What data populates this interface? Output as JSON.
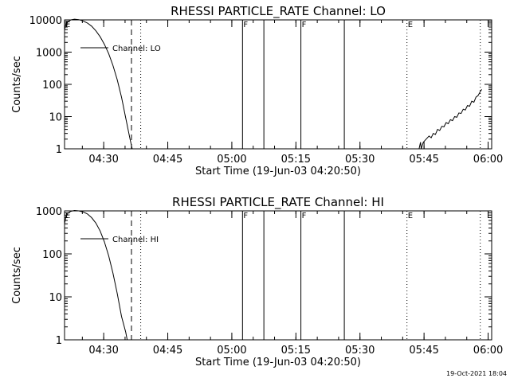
{
  "timestamp": "19-Oct-2021 18:04",
  "chart_data": [
    {
      "type": "line",
      "title": "RHESSI PARTICLE_RATE Channel: LO",
      "xlabel": "Start Time (19-Jun-03 04:20:50)",
      "ylabel": "Counts/sec",
      "y_scale": "log",
      "ylim": [
        1,
        10000
      ],
      "y_ticks": [
        1,
        10,
        100,
        1000,
        10000
      ],
      "y_tick_labels": [
        "1",
        "10",
        "100",
        "1000",
        "10000"
      ],
      "xlim": [
        "04:20:50",
        "06:00:50"
      ],
      "x_ticks": [
        "04:30",
        "04:45",
        "05:00",
        "05:15",
        "05:30",
        "05:45",
        "06:00"
      ],
      "legend": {
        "label": "Channel: LO",
        "position": "top-left"
      },
      "markers": [
        {
          "time": "04:20:50",
          "style": "dotted",
          "label": "E"
        },
        {
          "time": "04:36:30",
          "style": "dashed",
          "label": ""
        },
        {
          "time": "04:38:40",
          "style": "dotted",
          "label": ""
        },
        {
          "time": "05:02:30",
          "style": "solid",
          "label": "F"
        },
        {
          "time": "05:07:30",
          "style": "solid",
          "label": ""
        },
        {
          "time": "05:16:10",
          "style": "solid",
          "label": "F"
        },
        {
          "time": "05:26:20",
          "style": "solid",
          "label": ""
        },
        {
          "time": "05:41:00",
          "style": "dotted",
          "label": "E"
        },
        {
          "time": "05:58:10",
          "style": "dotted",
          "label": ""
        }
      ],
      "series": [
        {
          "segments": [
            [
              [
                "04:20:50",
                5000
              ],
              [
                "04:21:10",
                7500
              ],
              [
                "04:21:40",
                9000
              ],
              [
                "04:22:20",
                10000
              ],
              [
                "04:23:10",
                10500
              ],
              [
                "04:24:10",
                10200
              ],
              [
                "04:25:10",
                9300
              ],
              [
                "04:26:10",
                8000
              ],
              [
                "04:27:10",
                6400
              ],
              [
                "04:28:10",
                4600
              ],
              [
                "04:29:10",
                3000
              ],
              [
                "04:30:10",
                1750
              ],
              [
                "04:31:10",
                900
              ],
              [
                "04:32:10",
                390
              ],
              [
                "04:33:10",
                140
              ],
              [
                "04:34:10",
                40
              ],
              [
                "04:35:10",
                9
              ],
              [
                "04:36:10",
                2
              ],
              [
                "04:36:40",
                1
              ]
            ],
            [
              [
                "05:43:50",
                1
              ],
              [
                "05:44:10",
                1.6
              ],
              [
                "05:44:20",
                1
              ],
              [
                "05:44:50",
                1.6
              ],
              [
                "05:45:30",
                2
              ],
              [
                "05:46:10",
                2.5
              ],
              [
                "05:46:40",
                2.2
              ],
              [
                "05:47:10",
                3
              ],
              [
                "05:47:40",
                2.8
              ],
              [
                "05:48:10",
                4
              ],
              [
                "05:48:40",
                3.7
              ],
              [
                "05:49:10",
                5
              ],
              [
                "05:49:40",
                4.8
              ],
              [
                "05:50:10",
                6.5
              ],
              [
                "05:50:40",
                6
              ],
              [
                "05:51:10",
                8
              ],
              [
                "05:51:40",
                7.5
              ],
              [
                "05:52:10",
                10
              ],
              [
                "05:52:40",
                9.5
              ],
              [
                "05:53:10",
                13
              ],
              [
                "05:53:40",
                12.5
              ],
              [
                "05:54:10",
                17
              ],
              [
                "05:54:40",
                16
              ],
              [
                "05:55:10",
                22
              ],
              [
                "05:55:40",
                21
              ],
              [
                "05:56:10",
                30
              ],
              [
                "05:56:40",
                28
              ],
              [
                "05:57:10",
                40
              ],
              [
                "05:57:40",
                45
              ],
              [
                "05:58:10",
                60
              ],
              [
                "05:58:30",
                70
              ]
            ]
          ]
        }
      ]
    },
    {
      "type": "line",
      "title": "RHESSI PARTICLE_RATE Channel: HI",
      "xlabel": "Start Time (19-Jun-03 04:20:50)",
      "ylabel": "Counts/sec",
      "y_scale": "log",
      "ylim": [
        1,
        1000
      ],
      "y_ticks": [
        1,
        10,
        100,
        1000
      ],
      "y_tick_labels": [
        "1",
        "10",
        "100",
        "1000"
      ],
      "xlim": [
        "04:20:50",
        "06:00:50"
      ],
      "x_ticks": [
        "04:30",
        "04:45",
        "05:00",
        "05:15",
        "05:30",
        "05:45",
        "06:00"
      ],
      "legend": {
        "label": "Channel: HI",
        "position": "top-left"
      },
      "markers": [
        {
          "time": "04:20:50",
          "style": "dotted",
          "label": "E"
        },
        {
          "time": "04:36:30",
          "style": "dashed",
          "label": ""
        },
        {
          "time": "04:38:40",
          "style": "dotted",
          "label": ""
        },
        {
          "time": "05:02:30",
          "style": "solid",
          "label": "F"
        },
        {
          "time": "05:07:30",
          "style": "solid",
          "label": ""
        },
        {
          "time": "05:16:10",
          "style": "solid",
          "label": "F"
        },
        {
          "time": "05:26:20",
          "style": "solid",
          "label": ""
        },
        {
          "time": "05:41:00",
          "style": "dotted",
          "label": "E"
        },
        {
          "time": "05:58:10",
          "style": "dotted",
          "label": ""
        }
      ],
      "series": [
        {
          "segments": [
            [
              [
                "04:20:50",
                500
              ],
              [
                "04:21:10",
                750
              ],
              [
                "04:21:40",
                900
              ],
              [
                "04:22:20",
                980
              ],
              [
                "04:23:10",
                1020
              ],
              [
                "04:24:10",
                1000
              ],
              [
                "04:25:10",
                950
              ],
              [
                "04:26:10",
                850
              ],
              [
                "04:27:10",
                700
              ],
              [
                "04:28:10",
                520
              ],
              [
                "04:29:10",
                340
              ],
              [
                "04:30:10",
                190
              ],
              [
                "04:31:10",
                90
              ],
              [
                "04:32:10",
                36
              ],
              [
                "04:33:10",
                12
              ],
              [
                "04:34:10",
                3.5
              ],
              [
                "04:35:10",
                1.5
              ],
              [
                "04:35:30",
                1
              ]
            ]
          ]
        }
      ]
    }
  ]
}
